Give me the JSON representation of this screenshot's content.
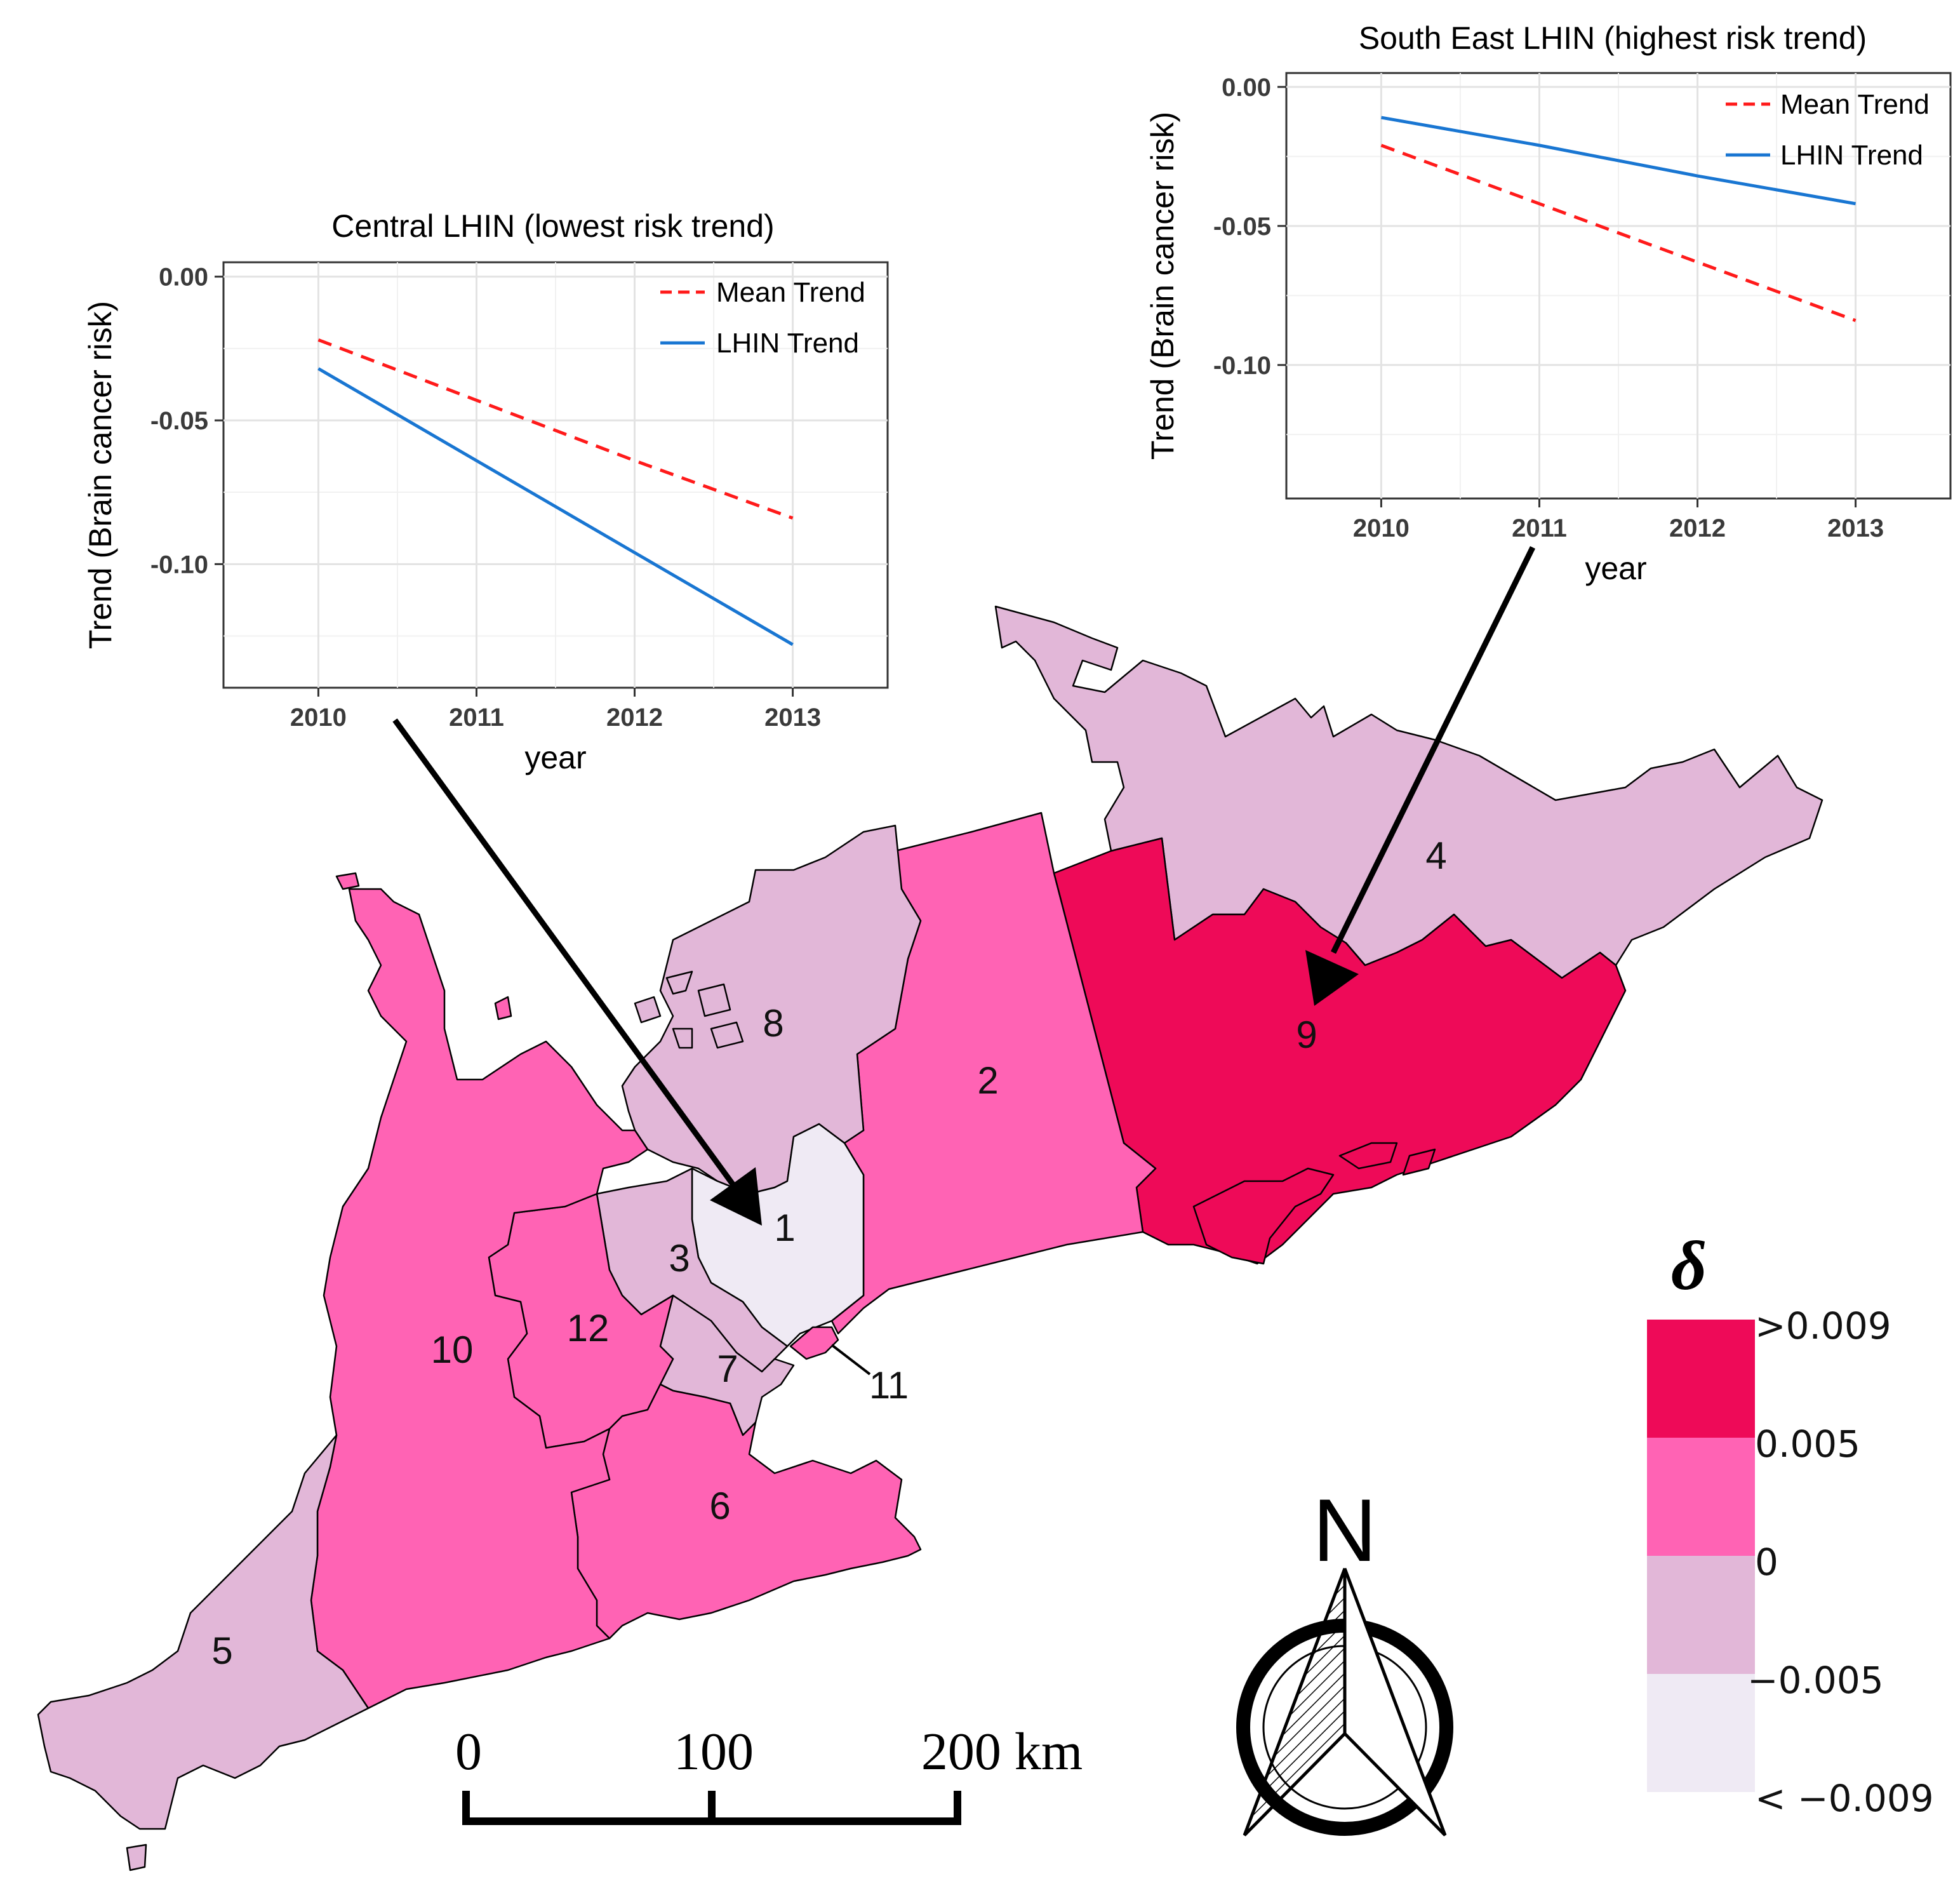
{
  "colors": {
    "class_gt_0_009": "#EE0A58",
    "class_0_005_0_009": "#FF63B4",
    "class_0_0_005": "#E2B7D8",
    "class_neg": "#EFEAF4",
    "mean_trend": "#FF1A1A",
    "lhin_trend": "#1976D2"
  },
  "map": {
    "regions": [
      {
        "id": "1",
        "label": "1",
        "class": "class_neg"
      },
      {
        "id": "2",
        "label": "2",
        "class": "class_0_005_0_009"
      },
      {
        "id": "3",
        "label": "3",
        "class": "class_0_0_005"
      },
      {
        "id": "4",
        "label": "4",
        "class": "class_0_0_005"
      },
      {
        "id": "5",
        "label": "5",
        "class": "class_0_0_005"
      },
      {
        "id": "6",
        "label": "6",
        "class": "class_0_005_0_009"
      },
      {
        "id": "7",
        "label": "7",
        "class": "class_0_0_005"
      },
      {
        "id": "8",
        "label": "8",
        "class": "class_0_0_005"
      },
      {
        "id": "9",
        "label": "9",
        "class": "class_gt_0_009"
      },
      {
        "id": "10",
        "label": "10",
        "class": "class_0_005_0_009"
      },
      {
        "id": "11",
        "label": "11",
        "class": "class_0_005_0_009"
      },
      {
        "id": "12",
        "label": "12",
        "class": "class_0_005_0_009"
      }
    ]
  },
  "legend": {
    "title": "δ",
    "labels": [
      ">0.009",
      "0.005",
      "0",
      "−0.005",
      "< −0.009"
    ]
  },
  "scale_bar": {
    "labels": [
      "0",
      "100",
      "200 km"
    ]
  },
  "north_arrow": {
    "label": "N"
  },
  "chart_data": [
    {
      "type": "line",
      "title": "Central LHIN (lowest risk trend)",
      "xlabel": "year",
      "ylabel": "Trend (Brain cancer risk)",
      "x": [
        2010,
        2011,
        2012,
        2013
      ],
      "xlim": [
        2009.4,
        2013.6
      ],
      "ylim": [
        -0.143,
        0.005
      ],
      "yticks": [
        0.0,
        -0.05,
        -0.1
      ],
      "ytick_labels": [
        "0.00",
        "-0.05",
        "-0.10"
      ],
      "xtick_labels": [
        "2010",
        "2011",
        "2012",
        "2013"
      ],
      "series": [
        {
          "name": "Mean Trend",
          "style": "dashed",
          "color": "#FF1A1A",
          "values": [
            -0.022,
            -0.043,
            -0.064,
            -0.084
          ]
        },
        {
          "name": "LHIN Trend",
          "style": "solid",
          "color": "#1976D2",
          "values": [
            -0.032,
            -0.064,
            -0.096,
            -0.128
          ]
        }
      ],
      "legend_position": "top-right"
    },
    {
      "type": "line",
      "title": "South East LHIN (highest risk trend)",
      "xlabel": "year",
      "ylabel": "Trend (Brain cancer risk)",
      "x": [
        2010,
        2011,
        2012,
        2013
      ],
      "xlim": [
        2009.4,
        2013.6
      ],
      "ylim": [
        -0.148,
        0.005
      ],
      "yticks": [
        0.0,
        -0.05,
        -0.1
      ],
      "ytick_labels": [
        "0.00",
        "-0.05",
        "-0.10"
      ],
      "xtick_labels": [
        "2010",
        "2011",
        "2012",
        "2013"
      ],
      "series": [
        {
          "name": "Mean Trend",
          "style": "dashed",
          "color": "#FF1A1A",
          "values": [
            -0.021,
            -0.042,
            -0.063,
            -0.084
          ]
        },
        {
          "name": "LHIN Trend",
          "style": "solid",
          "color": "#1976D2",
          "values": [
            -0.011,
            -0.021,
            -0.032,
            -0.042
          ]
        }
      ],
      "legend_position": "top-right"
    }
  ]
}
